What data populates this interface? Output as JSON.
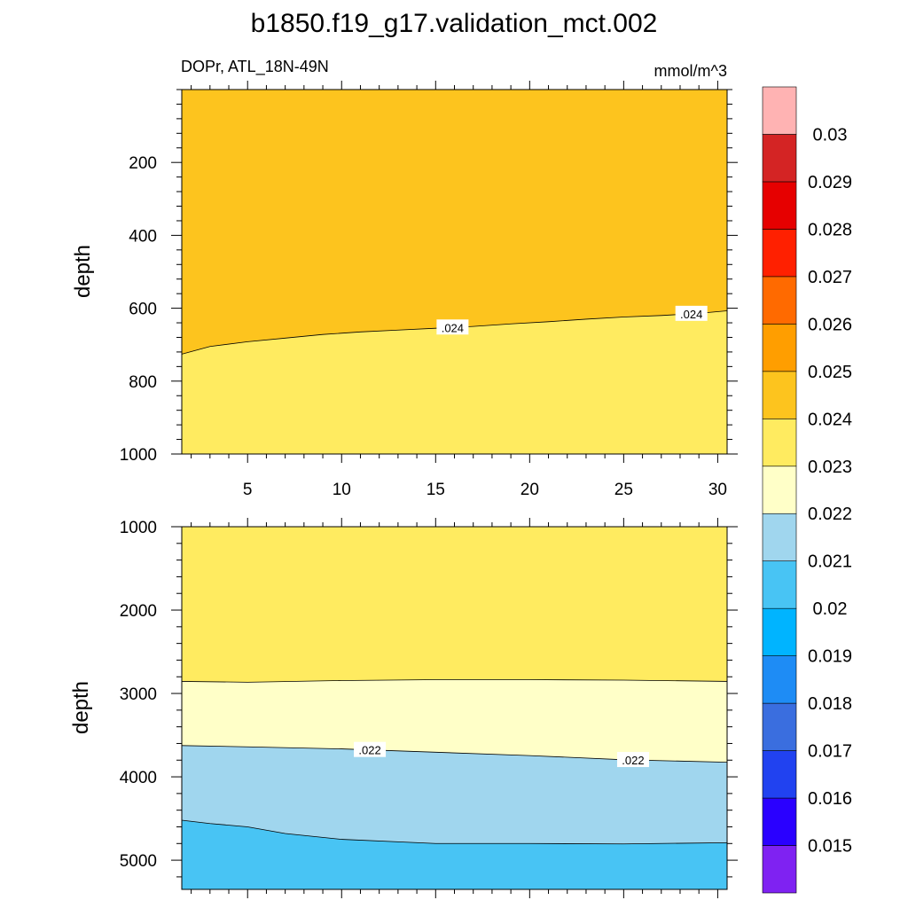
{
  "title": "b1850.f19_g17.validation_mct.002",
  "subtitle_left": "DOPr, ATL_18N-49N",
  "subtitle_right": "mmol/m^3",
  "colors": {
    "c0.024_0.025": "#fdc41e",
    "c0.023_0.024": "#ffeb60",
    "c0.022_0.023": "#ffffc8",
    "c0.021_0.022": "#a0d6ee",
    "c0.020_0.021": "#48c4f4",
    "colorbar": [
      "#7f22f2",
      "#2a00ff",
      "#2142f0",
      "#3a6edf",
      "#1e8cf5",
      "#00b4ff",
      "#48c4f4",
      "#a0d6ee",
      "#ffffc8",
      "#ffeb60",
      "#fdc41e",
      "#ff9e00",
      "#ff6a00",
      "#ff2000",
      "#e60000",
      "#d42424",
      "#ffb3b3"
    ]
  },
  "chart_data": [
    {
      "type": "contour",
      "panel": "top",
      "ylabel": "depth",
      "x_range": [
        1.5,
        30.5
      ],
      "y_range": [
        1000,
        0
      ],
      "x_ticks": [
        "5",
        "10",
        "15",
        "20",
        "25",
        "30"
      ],
      "y_ticks": [
        "200",
        "400",
        "600",
        "800",
        "1000"
      ],
      "contours": [
        {
          "level": 0.024,
          "label": ".024",
          "x": [
            1.5,
            3,
            5,
            7,
            9,
            11,
            13,
            15,
            17,
            19,
            21,
            23,
            25,
            27,
            29,
            30.5
          ],
          "depth": [
            726,
            705,
            692,
            682,
            672,
            665,
            660,
            655,
            650,
            643,
            637,
            630,
            624,
            620,
            614,
            607
          ]
        }
      ],
      "bands": [
        {
          "range": [
            0.024,
            0.025
          ],
          "region": "above-contour"
        },
        {
          "range": [
            0.023,
            0.024
          ],
          "region": "below-contour"
        }
      ]
    },
    {
      "type": "contour",
      "panel": "bottom",
      "ylabel": "depth",
      "x_range": [
        1.5,
        30.5
      ],
      "y_range": [
        5350,
        1000
      ],
      "y_ticks": [
        "1000",
        "2000",
        "3000",
        "4000",
        "5000"
      ],
      "contours": [
        {
          "level": 0.023,
          "x": [
            1.5,
            5,
            10,
            15,
            20,
            25,
            30.5
          ],
          "depth": [
            2855,
            2865,
            2845,
            2835,
            2835,
            2840,
            2855
          ]
        },
        {
          "level": 0.022,
          "label": ".022",
          "x": [
            1.5,
            5,
            10,
            15,
            20,
            25,
            30.5
          ],
          "depth": [
            3625,
            3640,
            3665,
            3705,
            3745,
            3795,
            3825
          ]
        },
        {
          "level": 0.021,
          "x": [
            1.5,
            3,
            5,
            7,
            10,
            13,
            15,
            20,
            25,
            30.5
          ],
          "depth": [
            4520,
            4560,
            4600,
            4680,
            4750,
            4780,
            4800,
            4800,
            4805,
            4790
          ]
        }
      ],
      "bands": [
        {
          "range": [
            0.023,
            0.024
          ]
        },
        {
          "range": [
            0.022,
            0.023
          ]
        },
        {
          "range": [
            0.021,
            0.022
          ]
        },
        {
          "range": [
            0.02,
            0.021
          ]
        }
      ]
    }
  ],
  "colorbar": {
    "labels": [
      "0.015",
      "0.016",
      "0.017",
      "0.018",
      "0.019",
      "0.02",
      "0.021",
      "0.022",
      "0.023",
      "0.024",
      "0.025",
      "0.026",
      "0.027",
      "0.028",
      "0.029",
      "0.03"
    ]
  }
}
